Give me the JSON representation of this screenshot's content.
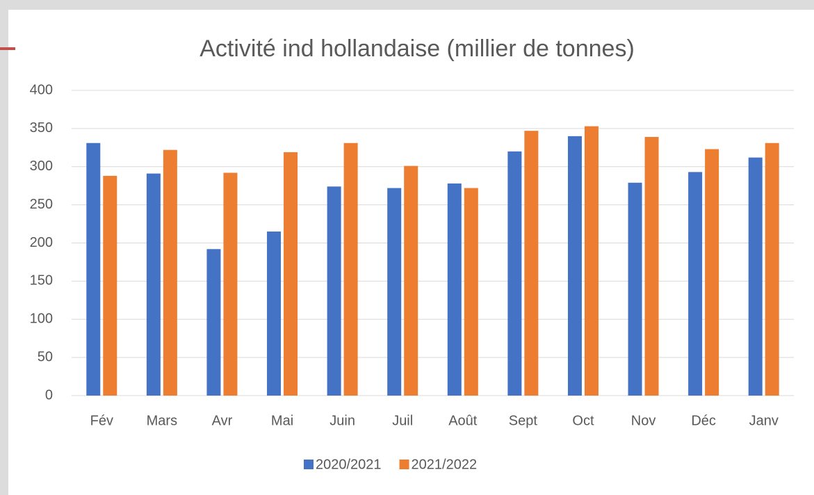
{
  "chart_data": {
    "type": "bar",
    "title": "Activité ind hollandaise (millier de tonnes)",
    "categories": [
      "Fév",
      "Mars",
      "Avr",
      "Mai",
      "Juin",
      "Juil",
      "Août",
      "Sept",
      "Oct",
      "Nov",
      "Déc",
      "Janv"
    ],
    "series": [
      {
        "name": "2020/2021",
        "color": "#4472c4",
        "values": [
          331,
          291,
          192,
          215,
          274,
          272,
          278,
          320,
          340,
          279,
          293,
          312
        ]
      },
      {
        "name": "2021/2022",
        "color": "#ed7d31",
        "values": [
          288,
          322,
          292,
          319,
          331,
          301,
          272,
          347,
          353,
          339,
          323,
          331
        ]
      }
    ],
    "ylim": [
      0,
      400
    ],
    "yticks": [
      0,
      50,
      100,
      150,
      200,
      250,
      300,
      350,
      400
    ],
    "grid": true,
    "legend": "bottom"
  }
}
